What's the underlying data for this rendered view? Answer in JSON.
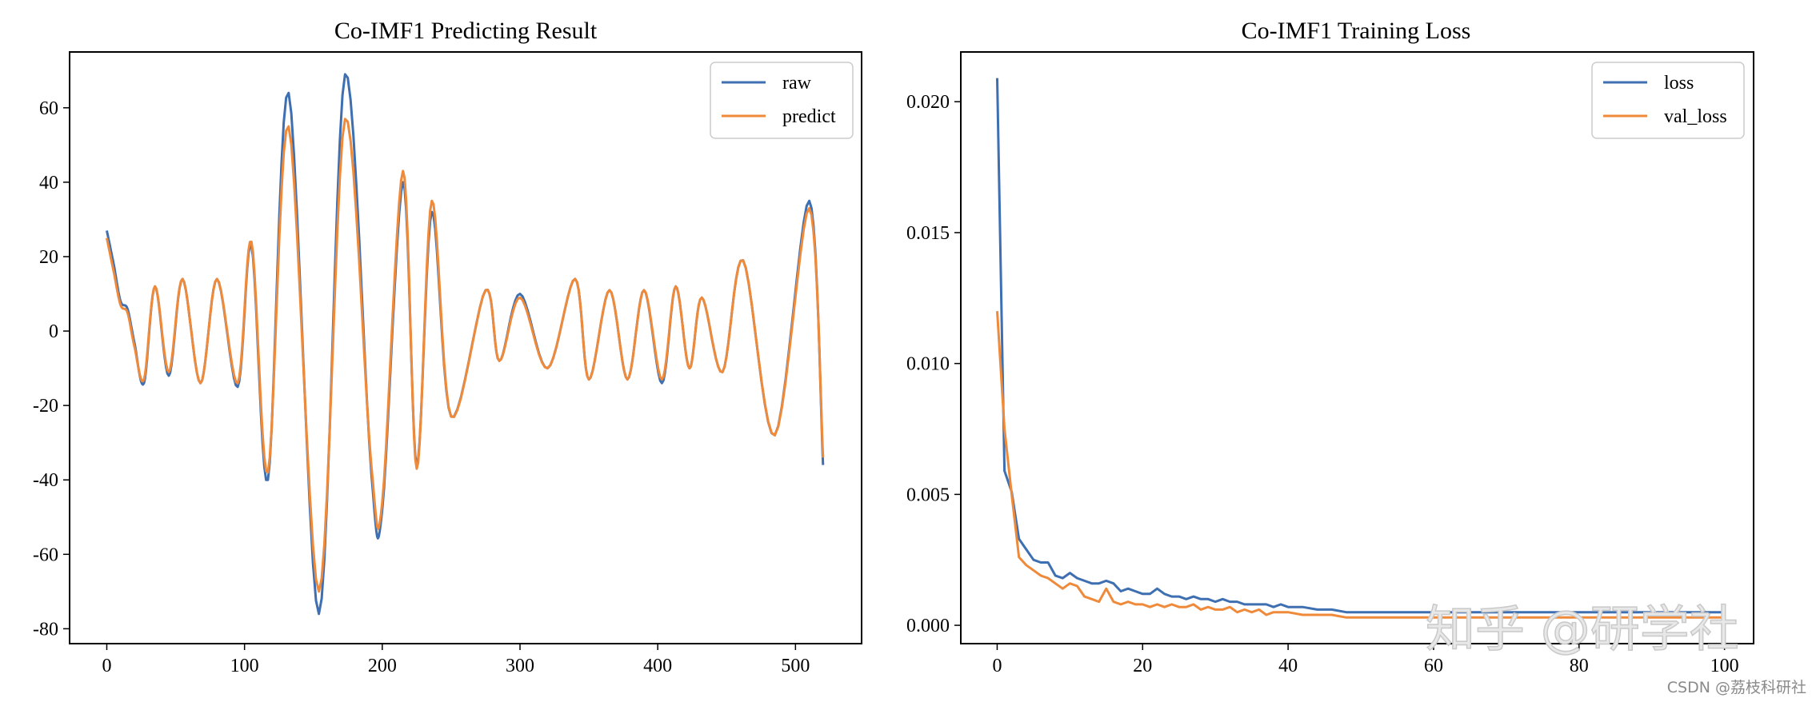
{
  "chart_data": [
    {
      "type": "line",
      "title": "Co-IMF1 Predicting Result",
      "xlabel": "",
      "ylabel": "",
      "xlim": [
        -27,
        548
      ],
      "ylim": [
        -84,
        75
      ],
      "xticks": [
        0,
        100,
        200,
        300,
        400,
        500
      ],
      "xtick_labels": [
        "0",
        "100",
        "200",
        "300",
        "400",
        "500"
      ],
      "yticks": [
        -80,
        -60,
        -40,
        -20,
        0,
        20,
        40,
        60
      ],
      "ytick_labels": [
        "-80",
        "-60",
        "-40",
        "-20",
        "0",
        "20",
        "40",
        "60"
      ],
      "grid": false,
      "legend": "top-right",
      "x": [
        0,
        5,
        10,
        15,
        20,
        27,
        35,
        45,
        55,
        68,
        80,
        95,
        105,
        117,
        132,
        154,
        173,
        192,
        200,
        215,
        225,
        236,
        250,
        275,
        285,
        300,
        320,
        340,
        350,
        365,
        378,
        390,
        403,
        413,
        423,
        432,
        447,
        462,
        485,
        510,
        520
      ],
      "series": [
        {
          "name": "raw",
          "color": "#3e6fb0",
          "values": [
            27,
            18,
            8,
            6,
            -3,
            -14,
            12,
            -12,
            14,
            -14,
            14,
            -15,
            23,
            -40,
            64,
            -76,
            69,
            -38,
            -48,
            40,
            -36,
            32,
            -23,
            11,
            -8,
            10,
            -10,
            14,
            -13,
            11,
            -13,
            11,
            -14,
            12,
            -10,
            9,
            -11,
            19,
            -28,
            35,
            -36
          ]
        },
        {
          "name": "predict",
          "color": "#ef8a3a",
          "values": [
            25,
            16,
            7,
            5,
            -4,
            -13,
            12,
            -11,
            14,
            -14,
            14,
            -14,
            24,
            -38,
            55,
            -70,
            57,
            -36,
            -46,
            43,
            -37,
            35,
            -23,
            11,
            -8,
            9,
            -10,
            14,
            -13,
            11,
            -13,
            11,
            -13,
            12,
            -10,
            9,
            -11,
            19,
            -28,
            33,
            -34
          ]
        }
      ]
    },
    {
      "type": "line",
      "title": "Co-IMF1 Training Loss",
      "xlabel": "",
      "ylabel": "",
      "xlim": [
        -5,
        104
      ],
      "ylim": [
        -0.0007,
        0.0219
      ],
      "xticks": [
        0,
        20,
        40,
        60,
        80,
        100
      ],
      "xtick_labels": [
        "0",
        "20",
        "40",
        "60",
        "80",
        "100"
      ],
      "yticks": [
        0.0,
        0.005,
        0.01,
        0.015,
        0.02
      ],
      "ytick_labels": [
        "0.000",
        "0.005",
        "0.010",
        "0.015",
        "0.020"
      ],
      "grid": false,
      "legend": "top-right",
      "series": [
        {
          "name": "loss",
          "color": "#3e6fb0",
          "x": [
            0,
            1,
            2,
            3,
            4,
            5,
            6,
            7,
            8,
            9,
            10,
            11,
            12,
            13,
            14,
            15,
            16,
            17,
            18,
            19,
            20,
            21,
            22,
            23,
            24,
            25,
            26,
            27,
            28,
            29,
            30,
            31,
            32,
            33,
            34,
            35,
            36,
            37,
            38,
            39,
            40,
            42,
            44,
            46,
            48,
            50,
            52,
            54,
            56,
            58,
            60,
            65,
            70,
            75,
            80,
            85,
            90,
            95,
            100
          ],
          "values": [
            0.0209,
            0.0059,
            0.0051,
            0.0033,
            0.0029,
            0.0025,
            0.0024,
            0.0024,
            0.0019,
            0.0018,
            0.002,
            0.0018,
            0.0017,
            0.0016,
            0.0016,
            0.0017,
            0.0016,
            0.0013,
            0.0014,
            0.0013,
            0.0012,
            0.0012,
            0.0014,
            0.0012,
            0.0011,
            0.0011,
            0.001,
            0.0011,
            0.001,
            0.001,
            0.0009,
            0.001,
            0.0009,
            0.0009,
            0.0008,
            0.0008,
            0.0008,
            0.0008,
            0.0007,
            0.0008,
            0.0007,
            0.0007,
            0.0006,
            0.0006,
            0.0005,
            0.0005,
            0.0005,
            0.0005,
            0.0005,
            0.0005,
            0.0005,
            0.0005,
            0.0005,
            0.0005,
            0.0005,
            0.0005,
            0.0005,
            0.0005,
            0.0005
          ]
        },
        {
          "name": "val_loss",
          "color": "#ef8a3a",
          "x": [
            0,
            1,
            2,
            3,
            4,
            5,
            6,
            7,
            8,
            9,
            10,
            11,
            12,
            13,
            14,
            15,
            16,
            17,
            18,
            19,
            20,
            21,
            22,
            23,
            24,
            25,
            26,
            27,
            28,
            29,
            30,
            31,
            32,
            33,
            34,
            35,
            36,
            37,
            38,
            39,
            40,
            42,
            44,
            46,
            48,
            50,
            52,
            54,
            56,
            58,
            60,
            65,
            70,
            75,
            80,
            85,
            90,
            95,
            100
          ],
          "values": [
            0.012,
            0.0075,
            0.005,
            0.0026,
            0.0023,
            0.0021,
            0.0019,
            0.0018,
            0.0016,
            0.0014,
            0.0016,
            0.0015,
            0.0011,
            0.001,
            0.0009,
            0.0014,
            0.0009,
            0.0008,
            0.0009,
            0.0008,
            0.0008,
            0.0007,
            0.0008,
            0.0007,
            0.0008,
            0.0007,
            0.0007,
            0.0008,
            0.0006,
            0.0007,
            0.0006,
            0.0006,
            0.0007,
            0.0005,
            0.0006,
            0.0005,
            0.0006,
            0.0004,
            0.0005,
            0.0005,
            0.0005,
            0.0004,
            0.0004,
            0.0004,
            0.0003,
            0.0003,
            0.0003,
            0.0003,
            0.0003,
            0.0003,
            0.0003,
            0.0003,
            0.0003,
            0.0003,
            0.0003,
            0.0003,
            0.0003,
            0.0003,
            0.0003
          ]
        }
      ]
    }
  ],
  "watermark": {
    "text": "知乎 @研学社",
    "source": "CSDN @荔枝科研社"
  }
}
